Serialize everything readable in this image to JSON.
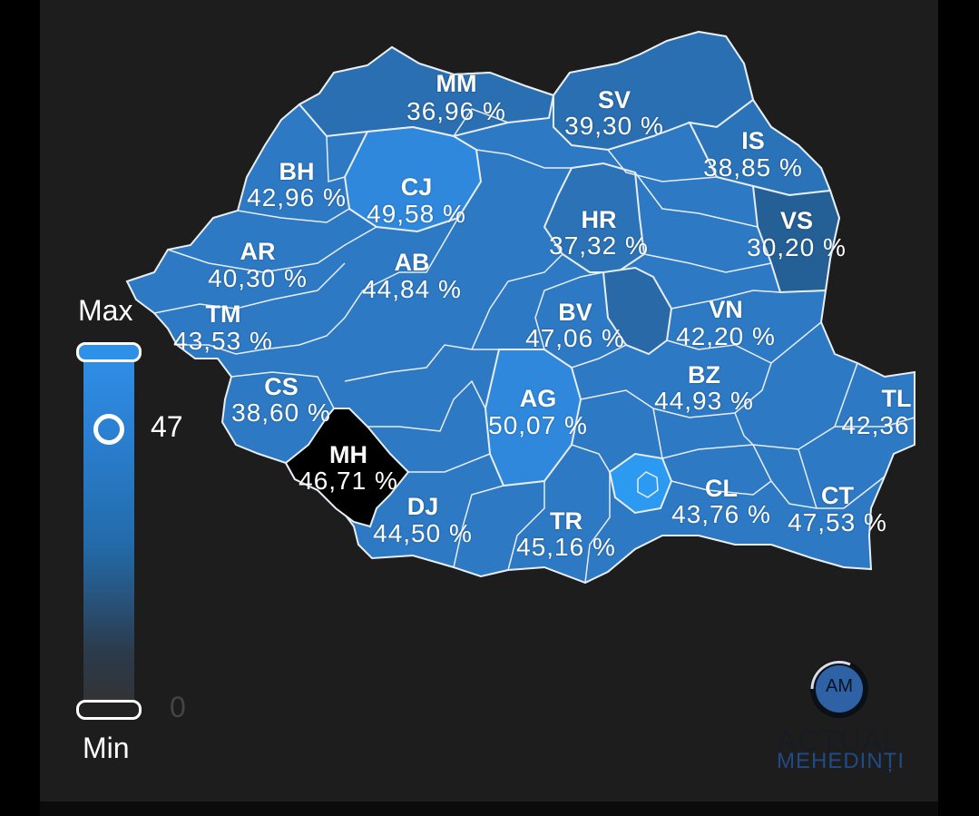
{
  "legend": {
    "max_label": "Max",
    "min_label": "Min",
    "current_value": "47",
    "min_value": "0"
  },
  "counties": [
    {
      "code": "MM",
      "value": "36,96 %",
      "color": "#2a6fb2"
    },
    {
      "code": "SV",
      "value": "39,30 %",
      "color": "#2a6fb2"
    },
    {
      "code": "IS",
      "value": "38,85 %",
      "color": "#2b73b8"
    },
    {
      "code": "BH",
      "value": "42,96 %",
      "color": "#2c7bc6"
    },
    {
      "code": "CJ",
      "value": "49,58 %",
      "color": "#2f88dc"
    },
    {
      "code": "HR",
      "value": "37,32 %",
      "color": "#2a6fb2"
    },
    {
      "code": "VS",
      "value": "30,20 %",
      "color": "#245f96"
    },
    {
      "code": "AR",
      "value": "40,30 %",
      "color": "#2a74bb"
    },
    {
      "code": "AB",
      "value": "44,84 %",
      "color": "#2d7dc9"
    },
    {
      "code": "TM",
      "value": "43,53 %",
      "color": "#2c7bc6"
    },
    {
      "code": "BV",
      "value": "47,06 %",
      "color": "#2e83d2"
    },
    {
      "code": "VN",
      "value": "42,20 %",
      "color": "#2b76bf"
    },
    {
      "code": "CS",
      "value": "38,60 %",
      "color": "#2a6fb2"
    },
    {
      "code": "AG",
      "value": "50,07 %",
      "color": "#2f88dc"
    },
    {
      "code": "BZ",
      "value": "44,93 %",
      "color": "#2d7dc9"
    },
    {
      "code": "TL",
      "value": "42,36",
      "color": "#2c7bc6"
    },
    {
      "code": "MH",
      "value": "46,71 %",
      "color": "#000000"
    },
    {
      "code": "DJ",
      "value": "44,50 %",
      "color": "#2d7dc9"
    },
    {
      "code": "TR",
      "value": "45,16 %",
      "color": "#2e80cd"
    },
    {
      "code": "CL",
      "value": "43,76 %",
      "color": "#2c7bc6"
    },
    {
      "code": "CT",
      "value": "47,53 %",
      "color": "#2e83d2"
    }
  ],
  "colors": {
    "map_base": "#2d79c4",
    "border": "#e8eef5",
    "highlight_bucharest": "#2b9af0",
    "background": "#1d1d1d"
  },
  "logo": {
    "mark": "AM",
    "line1": "ACTUAL",
    "line2": "MEHEDINȚI"
  }
}
